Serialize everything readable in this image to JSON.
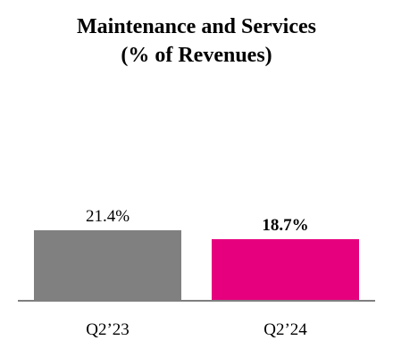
{
  "chart_data": {
    "type": "bar",
    "title": "Maintenance and Services",
    "subtitle": "(% of Revenues)",
    "categories": [
      "Q2’23",
      "Q2’24"
    ],
    "values": [
      21.4,
      18.7
    ],
    "data_labels": [
      "21.4%",
      "18.7%"
    ],
    "data_label_bold": [
      false,
      true
    ],
    "colors": [
      "#808080",
      "#E6007E"
    ],
    "axis_color": "#7f7f7f",
    "ylim": [
      0,
      26
    ],
    "grid": false,
    "legend": "none"
  }
}
